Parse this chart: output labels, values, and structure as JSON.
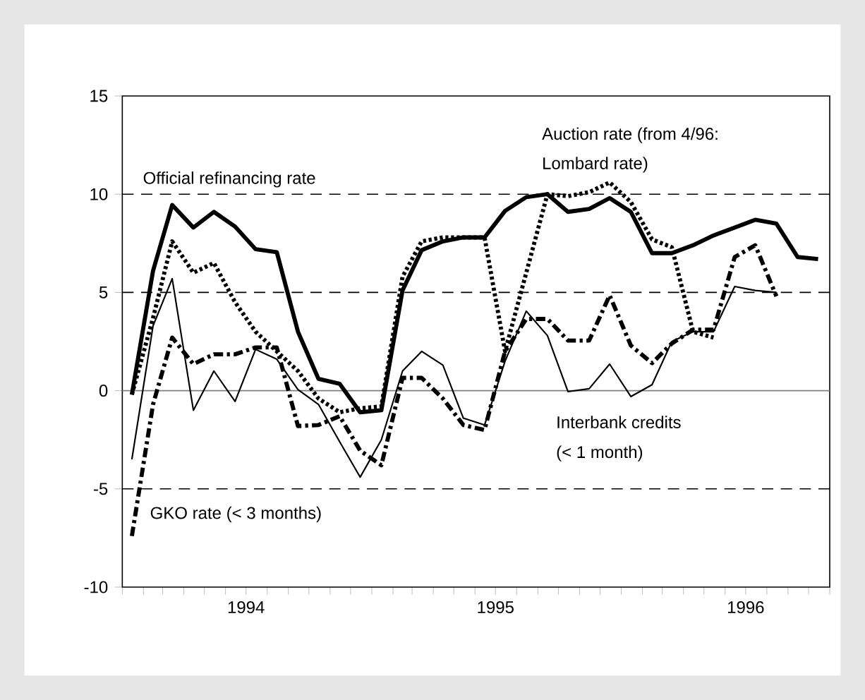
{
  "chart_data": {
    "type": "line",
    "x": [
      "1994-01-15",
      "1994-02-15",
      "1994-03-15",
      "1994-04-15",
      "1994-05-15",
      "1994-06-15",
      "1994-07-15",
      "1994-08-15",
      "1994-09-15",
      "1994-10-15",
      "1994-11-15",
      "1994-12-15",
      "1995-01-15",
      "1995-02-15",
      "1995-03-15",
      "1995-04-15",
      "1995-05-15",
      "1995-06-15",
      "1995-07-15",
      "1995-08-15",
      "1995-09-15",
      "1995-10-15",
      "1995-11-15",
      "1995-12-15",
      "1996-01-15",
      "1996-02-15",
      "1996-03-15",
      "1996-04-15",
      "1996-05-15",
      "1996-06-15",
      "1996-07-15",
      "1996-08-15",
      "1996-09-15",
      "1996-10-15"
    ],
    "series": [
      {
        "color": "#000000",
        "line_style": "solid",
        "values": [
          -0.2,
          6.1,
          9.45,
          8.3,
          9.1,
          8.35,
          7.2,
          7.05,
          3.0,
          0.6,
          0.35,
          -1.1,
          -1.0,
          5.1,
          7.15,
          7.6,
          7.8,
          7.8,
          9.15,
          9.85,
          10.0,
          9.1,
          9.25,
          9.8,
          9.1,
          7.0,
          7.0,
          7.4,
          7.9,
          8.3,
          8.7,
          8.5,
          6.8,
          6.7
        ]
      },
      {
        "color": "#000000",
        "line_style": "dotted",
        "values": [
          -0.2,
          3.7,
          7.6,
          6.0,
          6.5,
          4.5,
          3.0,
          2.0,
          1.0,
          -0.4,
          -1.1,
          -0.9,
          -0.8,
          5.8,
          7.6,
          7.8,
          7.8,
          7.8,
          2.0,
          6.0,
          10.0,
          9.9,
          10.1,
          10.6,
          9.6,
          7.7,
          7.3,
          3.0,
          2.7,
          null,
          null,
          null,
          null,
          null
        ]
      },
      {
        "color": "#000000",
        "line_style": "dashdot",
        "values": [
          -7.4,
          -0.7,
          2.7,
          1.35,
          1.85,
          1.85,
          2.2,
          2.2,
          -1.8,
          -1.75,
          -1.3,
          -3.05,
          -3.8,
          0.65,
          0.65,
          -0.4,
          -1.75,
          -2.0,
          2.0,
          3.65,
          3.65,
          2.55,
          2.55,
          4.85,
          2.3,
          1.4,
          2.4,
          3.1,
          3.1,
          6.8,
          7.4,
          4.8,
          null,
          null
        ]
      },
      {
        "color": "#000000",
        "line_style": "solid",
        "values": [
          -3.5,
          3.3,
          5.7,
          -1.0,
          1.0,
          -0.55,
          2.1,
          1.6,
          0.05,
          -0.7,
          -2.6,
          -4.4,
          -2.5,
          1.0,
          2.0,
          1.3,
          -1.4,
          -1.75,
          1.5,
          4.05,
          2.8,
          -0.05,
          0.1,
          1.35,
          -0.3,
          0.3,
          2.5,
          3.0,
          3.0,
          5.3,
          5.1,
          5.0,
          null,
          null
        ]
      }
    ],
    "xlim": [
      "1994-01-01",
      "1996-11-01"
    ],
    "xticks": [
      {
        "value": "1994-01-01",
        "label": null
      },
      {
        "value": "1994-02-01",
        "label": null
      },
      {
        "value": "1994-03-01",
        "label": null
      },
      {
        "value": "1994-04-01",
        "label": null
      },
      {
        "value": "1994-05-01",
        "label": null
      },
      {
        "value": "1994-06-01",
        "label": null
      },
      {
        "value": "1994-07-01",
        "label": "1994"
      },
      {
        "value": "1994-08-01",
        "label": null
      },
      {
        "value": "1994-09-01",
        "label": null
      },
      {
        "value": "1994-10-01",
        "label": null
      },
      {
        "value": "1994-11-01",
        "label": null
      },
      {
        "value": "1994-12-01",
        "label": null
      },
      {
        "value": "1995-01-01",
        "label": null
      },
      {
        "value": "1995-02-01",
        "label": null
      },
      {
        "value": "1995-03-01",
        "label": null
      },
      {
        "value": "1995-04-01",
        "label": null
      },
      {
        "value": "1995-05-01",
        "label": null
      },
      {
        "value": "1995-06-01",
        "label": null
      },
      {
        "value": "1995-07-01",
        "label": "1995"
      },
      {
        "value": "1995-08-01",
        "label": null
      },
      {
        "value": "1995-09-01",
        "label": null
      },
      {
        "value": "1995-10-01",
        "label": null
      },
      {
        "value": "1995-11-01",
        "label": null
      },
      {
        "value": "1995-12-01",
        "label": null
      },
      {
        "value": "1996-01-01",
        "label": null
      },
      {
        "value": "1996-02-01",
        "label": null
      },
      {
        "value": "1996-03-01",
        "label": null
      },
      {
        "value": "1996-04-01",
        "label": null
      },
      {
        "value": "1996-05-01",
        "label": null
      },
      {
        "value": "1996-06-01",
        "label": null
      },
      {
        "value": "1996-07-01",
        "label": "1996"
      },
      {
        "value": "1996-08-01",
        "label": null
      },
      {
        "value": "1996-09-01",
        "label": null
      },
      {
        "value": "1996-10-01",
        "label": null
      },
      {
        "value": "1996-11-01",
        "label": null
      }
    ],
    "ylim": [
      -10,
      15
    ],
    "yticks": [
      -10,
      -5,
      0,
      5,
      10,
      15
    ],
    "ref_lines": [
      {
        "axis": "y",
        "value": 10,
        "line_style": "dashed",
        "color": "#000000"
      },
      {
        "axis": "y",
        "value": 5,
        "line_style": "dashed",
        "color": "#000000"
      },
      {
        "axis": "y",
        "value": 0,
        "line_style": "solid",
        "color": "#808080"
      },
      {
        "axis": "y",
        "value": -5,
        "line_style": "dashed",
        "color": "#000000"
      }
    ],
    "annotations": [
      "Official refinancing rate",
      "Auction rate (from 4/96:",
      "Lombard rate)",
      "Interbank credits",
      "(< 1 month)",
      "GKO rate (< 3 months)"
    ]
  }
}
